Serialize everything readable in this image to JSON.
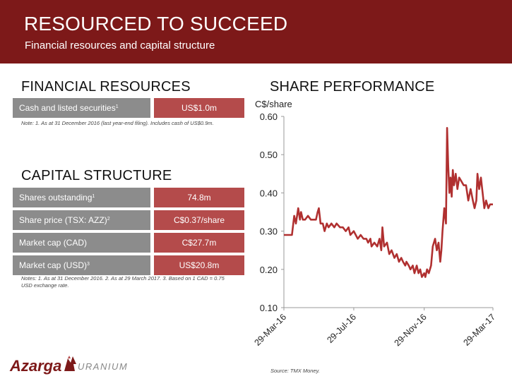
{
  "header": {
    "title": "RESOURCED TO SUCCEED",
    "subtitle": "Financial resources and capital structure"
  },
  "financial": {
    "heading": "FINANCIAL RESOURCES",
    "row_label": "Cash and listed securities",
    "row_sup": "1",
    "row_value": "US$1.0m",
    "note": "Note: 1. As at 31 December 2016 (last year-end filing). Includes cash of US$0.9m."
  },
  "capital": {
    "heading": "CAPITAL STRUCTURE",
    "rows": [
      {
        "label": "Shares outstanding",
        "sup": "1",
        "value": "74.8m"
      },
      {
        "label": "Share price (TSX: AZZ)",
        "sup": "2",
        "value": "C$0.37/share"
      },
      {
        "label": "Market cap (CAD)",
        "sup": "",
        "value": "C$27.7m"
      },
      {
        "label": "Market cap (USD)",
        "sup": "3",
        "value": "US$20.8m"
      }
    ],
    "note": "Notes: 1. As at 31 December 2016. 2. As at 29 March 2017. 3. Based on 1 CAD = 0.75 USD exchange rate."
  },
  "chart_data": {
    "type": "line",
    "title": "SHARE PERFORMANCE",
    "ylabel": "C$/share",
    "xlabel": "",
    "ylim": [
      0.1,
      0.6
    ],
    "yticks": [
      "0.10",
      "0.20",
      "0.30",
      "0.40",
      "0.50",
      "0.60"
    ],
    "xticks": [
      "29-Mar-16",
      "29-Jul-16",
      "29-Nov-16",
      "29-Mar-17"
    ],
    "grid": false,
    "color": "#b03030",
    "series": [
      {
        "x": [
          "29-Mar-16",
          "5-Apr-16",
          "12-Apr-16",
          "16-Apr-16",
          "19-Apr-16",
          "23-Apr-16",
          "26-Apr-16",
          "28-Apr-16",
          "1-May-16",
          "5-May-16",
          "10-May-16",
          "15-May-16",
          "20-May-16",
          "24-May-16",
          "27-May-16",
          "29-May-16",
          "1-Jun-16",
          "5-Jun-16",
          "8-Jun-16",
          "12-Jun-16",
          "15-Jun-16",
          "20-Jun-16",
          "25-Jun-16",
          "29-Jun-16",
          "5-Jul-16",
          "10-Jul-16",
          "15-Jul-16",
          "20-Jul-16",
          "23-Jul-16",
          "29-Jul-16",
          "5-Aug-16",
          "10-Aug-16",
          "15-Aug-16",
          "20-Aug-16",
          "23-Aug-16",
          "27-Aug-16",
          "29-Aug-16",
          "3-Sep-16",
          "8-Sep-16",
          "12-Sep-16",
          "15-Sep-16",
          "17-Sep-16",
          "20-Sep-16",
          "25-Sep-16",
          "29-Sep-16",
          "3-Oct-16",
          "8-Oct-16",
          "12-Oct-16",
          "16-Oct-16",
          "20-Oct-16",
          "23-Oct-16",
          "27-Oct-16",
          "29-Oct-16",
          "2-Nov-16",
          "5-Nov-16",
          "9-Nov-16",
          "12-Nov-16",
          "16-Nov-16",
          "19-Nov-16",
          "22-Nov-16",
          "25-Nov-16",
          "29-Nov-16",
          "1-Dec-16",
          "4-Dec-16",
          "7-Dec-16",
          "11-Dec-16",
          "14-Dec-16",
          "18-Dec-16",
          "21-Dec-16",
          "24-Dec-16",
          "27-Dec-16",
          "29-Dec-16",
          "31-Dec-16",
          "3-Jan-17",
          "6-Jan-17",
          "8-Jan-17",
          "10-Jan-17",
          "12-Jan-17",
          "14-Jan-17",
          "16-Jan-17",
          "18-Jan-17",
          "20-Jan-17",
          "23-Jan-17",
          "26-Jan-17",
          "29-Jan-17",
          "2-Feb-17",
          "6-Feb-17",
          "10-Feb-17",
          "14-Feb-17",
          "18-Feb-17",
          "22-Feb-17",
          "25-Feb-17",
          "28-Feb-17",
          "2-Mar-17",
          "5-Mar-17",
          "8-Mar-17",
          "11-Mar-17",
          "14-Mar-17",
          "17-Mar-17",
          "21-Mar-17",
          "24-Mar-17",
          "26-Mar-17",
          "29-Mar-17"
        ],
        "values": [
          0.29,
          0.29,
          0.29,
          0.34,
          0.32,
          0.36,
          0.33,
          0.35,
          0.33,
          0.33,
          0.34,
          0.33,
          0.33,
          0.33,
          0.35,
          0.36,
          0.32,
          0.32,
          0.3,
          0.32,
          0.31,
          0.32,
          0.31,
          0.32,
          0.31,
          0.31,
          0.3,
          0.31,
          0.29,
          0.3,
          0.28,
          0.29,
          0.28,
          0.28,
          0.27,
          0.28,
          0.26,
          0.27,
          0.26,
          0.28,
          0.25,
          0.31,
          0.26,
          0.27,
          0.24,
          0.25,
          0.23,
          0.24,
          0.22,
          0.23,
          0.22,
          0.21,
          0.22,
          0.21,
          0.2,
          0.21,
          0.19,
          0.21,
          0.19,
          0.2,
          0.18,
          0.19,
          0.18,
          0.2,
          0.19,
          0.21,
          0.26,
          0.28,
          0.25,
          0.27,
          0.22,
          0.25,
          0.3,
          0.36,
          0.32,
          0.57,
          0.47,
          0.4,
          0.44,
          0.39,
          0.46,
          0.42,
          0.45,
          0.41,
          0.44,
          0.43,
          0.42,
          0.42,
          0.38,
          0.41,
          0.38,
          0.36,
          0.38,
          0.45,
          0.41,
          0.44,
          0.4,
          0.36,
          0.38,
          0.36,
          0.37,
          0.37,
          0.37
        ]
      }
    ]
  },
  "source": "Source: TMX Money.",
  "logo": {
    "name": "Azarga",
    "sub": "URANIUM"
  }
}
